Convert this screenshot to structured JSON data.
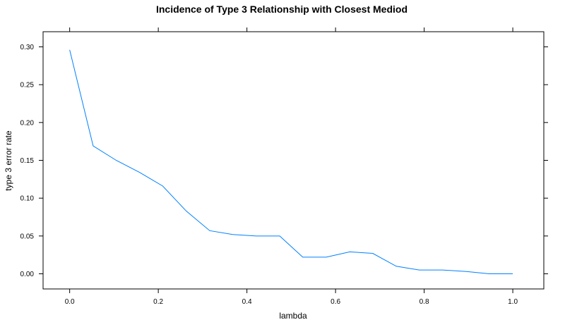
{
  "chart_data": {
    "type": "line",
    "title": "Incidence of Type 3 Relationship with Closest Mediod",
    "xlabel": "lambda",
    "ylabel": "type 3 error rate",
    "xlim": [
      -0.06,
      1.07
    ],
    "ylim": [
      -0.02,
      0.32
    ],
    "xticks": [
      0.0,
      0.2,
      0.4,
      0.6,
      0.8,
      1.0
    ],
    "xtick_labels": [
      "0.0",
      "0.2",
      "0.4",
      "0.6",
      "0.8",
      "1.0"
    ],
    "yticks": [
      0.0,
      0.05,
      0.1,
      0.15,
      0.2,
      0.25,
      0.3
    ],
    "ytick_labels": [
      "0.00",
      "0.05",
      "0.10",
      "0.15",
      "0.20",
      "0.25",
      "0.30"
    ],
    "grid": false,
    "series": [
      {
        "color": "#0080ff",
        "x": [
          0.0,
          0.053,
          0.105,
          0.158,
          0.21,
          0.263,
          0.316,
          0.368,
          0.421,
          0.474,
          0.526,
          0.579,
          0.632,
          0.684,
          0.737,
          0.789,
          0.842,
          0.895,
          0.947,
          1.0
        ],
        "y": [
          0.296,
          0.169,
          0.15,
          0.134,
          0.116,
          0.083,
          0.057,
          0.052,
          0.05,
          0.05,
          0.022,
          0.022,
          0.029,
          0.027,
          0.01,
          0.005,
          0.005,
          0.003,
          0.0,
          0.0
        ]
      }
    ]
  }
}
